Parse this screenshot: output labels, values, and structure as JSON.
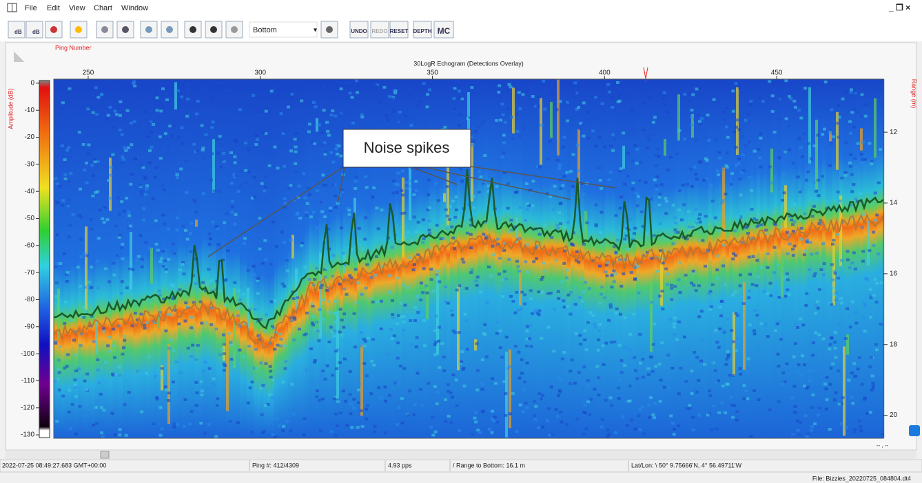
{
  "menu": [
    "File",
    "Edit",
    "View",
    "Chart",
    "Window"
  ],
  "toolbar": {
    "db_labels": [
      "dB",
      "dB"
    ],
    "dropdown": "Bottom",
    "buttons": [
      "UNDO",
      "REDO",
      "RESET",
      "DEPTH",
      "MC"
    ]
  },
  "echogram": {
    "x_label": "Ping Number",
    "title": "30LogR Echogram (Detections Overlay)",
    "xlim": [
      240,
      481
    ],
    "xticks": [
      250,
      300,
      350,
      400,
      450
    ],
    "y_label": "Amplitude (dB)",
    "ylim": [
      -131,
      1
    ],
    "yticks": [
      0,
      -10,
      -20,
      -30,
      -40,
      -50,
      -60,
      -70,
      -80,
      -90,
      -100,
      -110,
      -120,
      -130
    ],
    "y2_label": "Range (m)",
    "y2lim": [
      10.5,
      20.65
    ],
    "y2ticks": [
      12,
      14,
      16,
      18,
      20
    ],
    "annotation": "Noise spikes",
    "cursor": "-- , --"
  },
  "status": [
    "2022-07-25 08:49:27.683 GMT+00:00",
    "Ping #: 412/4309",
    "4.93 pps",
    "/ Range to Bottom: 16.1 m",
    "Lat/Lon: \\ 50° 9.75666'N, 4° 56.49711'W"
  ],
  "file": "File:  Bizzies_20220725_084804.dt4"
}
